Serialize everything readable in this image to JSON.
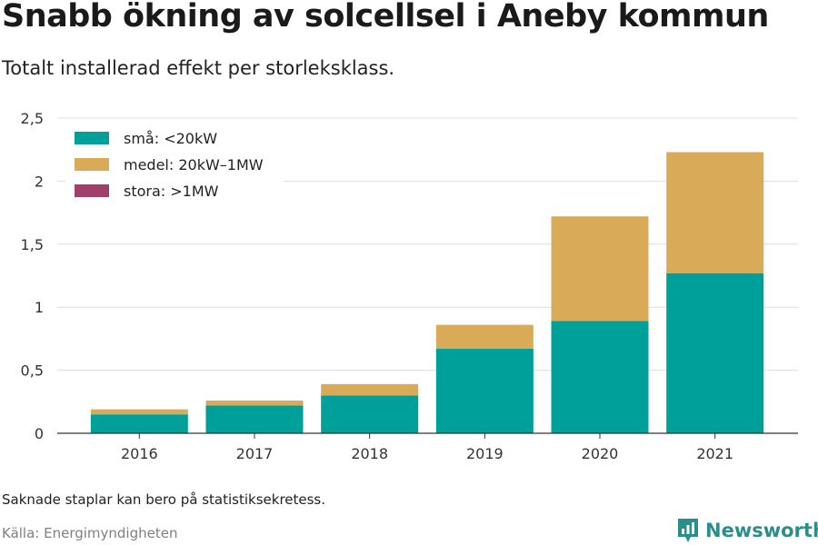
{
  "header": {
    "title": "Snabb ökning av solcellsel i Aneby kommun",
    "subtitle": "Totalt installerad effekt per storleksklass."
  },
  "footer": {
    "note": "Saknade staplar kan bero på statistiksekretess.",
    "source": "Källa: Energimyndigheten",
    "brand": "Newsworthy"
  },
  "colors": {
    "small": "#00a09a",
    "medium": "#d9ab58",
    "large": "#a0406a",
    "brand": "#2a8f8a"
  },
  "chart_data": {
    "type": "bar",
    "stacked": true,
    "categories": [
      "2016",
      "2017",
      "2018",
      "2019",
      "2020",
      "2021"
    ],
    "series": [
      {
        "name": "små: <20kW",
        "values": [
          0.15,
          0.22,
          0.3,
          0.67,
          0.89,
          1.27
        ],
        "color": "#00a09a"
      },
      {
        "name": "medel: 20kW–1MW",
        "values": [
          0.04,
          0.04,
          0.09,
          0.19,
          0.83,
          0.96
        ],
        "color": "#d9ab58"
      },
      {
        "name": "stora: >1MW",
        "values": [
          0,
          0,
          0,
          0,
          0,
          0
        ],
        "color": "#a0406a"
      }
    ],
    "y_ticks": [
      0,
      0.5,
      1,
      1.5,
      2,
      2.5
    ],
    "y_tick_labels": [
      "0",
      "0,5",
      "1",
      "1,5",
      "2",
      "2,5"
    ],
    "ylim": [
      0,
      2.5
    ],
    "grid": true,
    "legend_position": "top-left"
  }
}
